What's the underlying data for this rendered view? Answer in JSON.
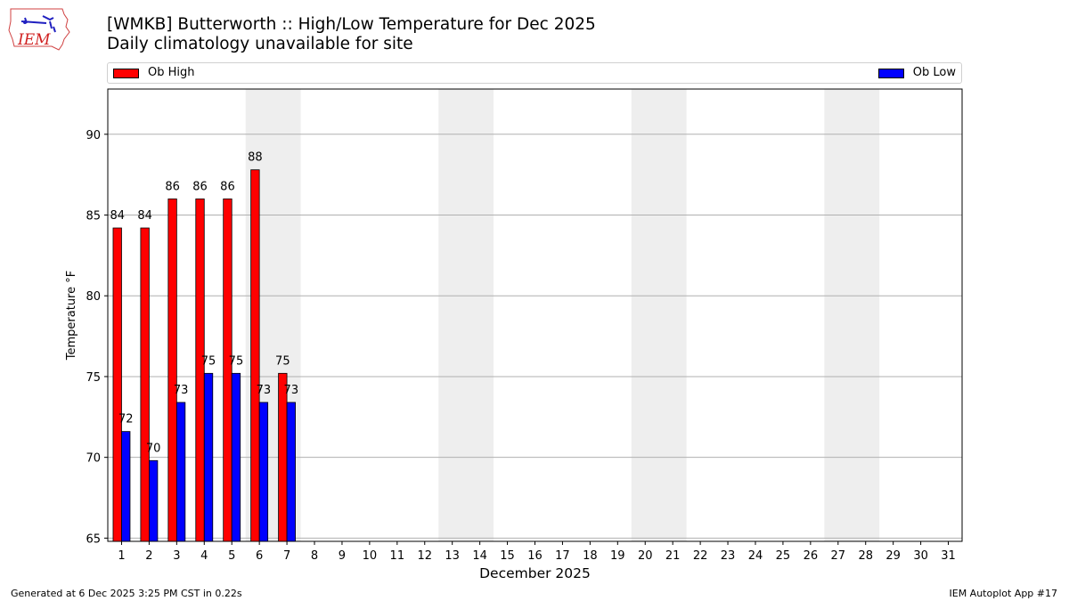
{
  "header": {
    "title_line1": "[WMKB] Butterworth :: High/Low Temperature for Dec 2025",
    "title_line2": "Daily climatology unavailable for site",
    "logo_text": "IEM"
  },
  "legend": {
    "items": [
      {
        "label": "Ob High",
        "color": "#ff0000"
      },
      {
        "label": "Ob Low",
        "color": "#0000ff"
      }
    ]
  },
  "footer": {
    "left": "Generated at 6 Dec 2025 3:25 PM CST in 0.22s",
    "right": "IEM Autoplot App #17"
  },
  "colors": {
    "high": "#ff0000",
    "low": "#0000ff",
    "weekend": "#eeeeee",
    "grid": "#b0b0b0"
  },
  "chart_data": {
    "type": "bar",
    "title": "[WMKB] Butterworth :: High/Low Temperature for Dec 2025",
    "subtitle": "Daily climatology unavailable for site",
    "xlabel": "December 2025",
    "ylabel": "Temperature °F",
    "ylim": [
      64.8,
      92.8
    ],
    "yticks": [
      65,
      70,
      75,
      80,
      85,
      90
    ],
    "xticks": [
      1,
      2,
      3,
      4,
      5,
      6,
      7,
      8,
      9,
      10,
      11,
      12,
      13,
      14,
      15,
      16,
      17,
      18,
      19,
      20,
      21,
      22,
      23,
      24,
      25,
      26,
      27,
      28,
      29,
      30,
      31
    ],
    "grid": "y",
    "legend_position": "top",
    "weekend_shading": [
      [
        6,
        7
      ],
      [
        13,
        14
      ],
      [
        20,
        21
      ],
      [
        27,
        28
      ]
    ],
    "categories": [
      1,
      2,
      3,
      4,
      5,
      6,
      7
    ],
    "series": [
      {
        "name": "Ob High",
        "color": "#ff0000",
        "values": [
          84.2,
          84.2,
          86.0,
          86.0,
          86.0,
          87.8,
          75.2
        ],
        "labels": [
          "84",
          "84",
          "86",
          "86",
          "86",
          "88",
          "75"
        ]
      },
      {
        "name": "Ob Low",
        "color": "#0000ff",
        "values": [
          71.6,
          69.8,
          73.4,
          75.2,
          75.2,
          73.4,
          73.4
        ],
        "labels": [
          "72",
          "70",
          "73",
          "75",
          "75",
          "73",
          "73"
        ]
      }
    ]
  }
}
